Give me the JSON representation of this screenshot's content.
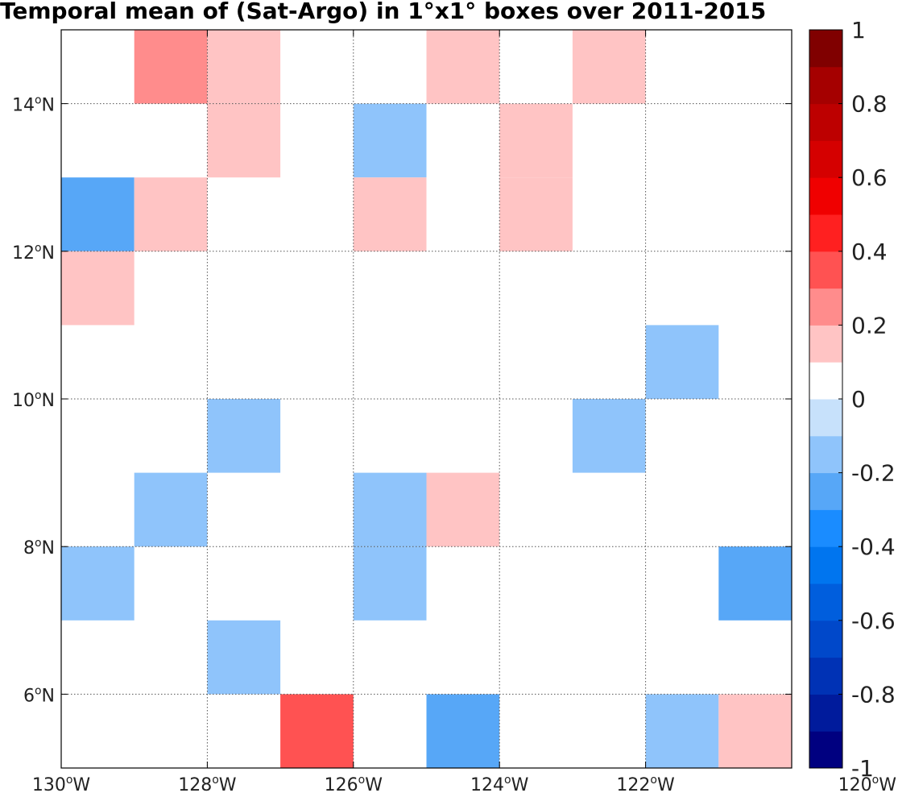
{
  "chart_data": {
    "type": "heatmap",
    "title": "Temporal mean of (Sat-Argo) in 1°x1° boxes over 2011-2015",
    "xlim": [
      -130,
      -120
    ],
    "ylim": [
      5,
      15
    ],
    "x_ticks": [
      -130,
      -128,
      -126,
      -124,
      -122,
      -120
    ],
    "x_tick_labels": [
      "130°W",
      "128°W",
      "126°W",
      "124°W",
      "122°W",
      "120°W"
    ],
    "y_ticks": [
      6,
      8,
      10,
      12,
      14
    ],
    "y_tick_labels": [
      "6°N",
      "8°N",
      "10°N",
      "12°N",
      "14°N"
    ],
    "grid": true,
    "grid_style": "dotted",
    "colorbar": {
      "range": [
        -1,
        1
      ],
      "ticks": [
        -1,
        -0.8,
        -0.6,
        -0.4,
        -0.2,
        0,
        0.2,
        0.4,
        0.6,
        0.8,
        1
      ],
      "tick_labels": [
        "-1",
        "-0.8",
        "-0.6",
        "-0.4",
        "-0.2",
        "0",
        "0.2",
        "0.4",
        "0.6",
        "0.8",
        "1"
      ],
      "placement": "right",
      "colors": [
        "#000080",
        "#001b9c",
        "#0032b5",
        "#0048ca",
        "#005edd",
        "#0075ef",
        "#1a8cff",
        "#57a7f7",
        "#8fc4fb",
        "#c7e1fb",
        "#ffffff",
        "#ffc4c4",
        "#ff8c8c",
        "#ff5252",
        "#ff2020",
        "#f00000",
        "#d50000",
        "#bd0000",
        "#a50000",
        "#800000"
      ]
    },
    "cells": [
      {
        "lon": -128.5,
        "lat": 14.5,
        "value": 0.25
      },
      {
        "lon": -127.5,
        "lat": 14.5,
        "value": 0.15
      },
      {
        "lon": -124.5,
        "lat": 14.5,
        "value": 0.15
      },
      {
        "lon": -122.5,
        "lat": 14.5,
        "value": 0.15
      },
      {
        "lon": -127.5,
        "lat": 13.5,
        "value": 0.15
      },
      {
        "lon": -125.5,
        "lat": 13.5,
        "value": -0.15
      },
      {
        "lon": -123.5,
        "lat": 13.5,
        "value": 0.15
      },
      {
        "lon": -129.5,
        "lat": 12.5,
        "value": -0.25
      },
      {
        "lon": -128.5,
        "lat": 12.5,
        "value": 0.15
      },
      {
        "lon": -125.5,
        "lat": 12.5,
        "value": 0.15
      },
      {
        "lon": -123.5,
        "lat": 12.5,
        "value": 0.15
      },
      {
        "lon": -129.5,
        "lat": 11.5,
        "value": 0.15
      },
      {
        "lon": -121.5,
        "lat": 10.5,
        "value": -0.15
      },
      {
        "lon": -127.5,
        "lat": 9.5,
        "value": -0.15
      },
      {
        "lon": -122.5,
        "lat": 9.5,
        "value": -0.15
      },
      {
        "lon": -128.5,
        "lat": 8.5,
        "value": -0.15
      },
      {
        "lon": -125.5,
        "lat": 8.5,
        "value": -0.15
      },
      {
        "lon": -124.5,
        "lat": 8.5,
        "value": 0.15
      },
      {
        "lon": -129.5,
        "lat": 7.5,
        "value": -0.15
      },
      {
        "lon": -125.5,
        "lat": 7.5,
        "value": -0.15
      },
      {
        "lon": -120.5,
        "lat": 7.5,
        "value": -0.25
      },
      {
        "lon": -127.5,
        "lat": 6.5,
        "value": -0.15
      },
      {
        "lon": -126.5,
        "lat": 5.5,
        "value": 0.35
      },
      {
        "lon": -124.5,
        "lat": 5.5,
        "value": -0.25
      },
      {
        "lon": -121.5,
        "lat": 5.5,
        "value": -0.15
      },
      {
        "lon": -120.5,
        "lat": 5.5,
        "value": 0.15
      }
    ]
  }
}
